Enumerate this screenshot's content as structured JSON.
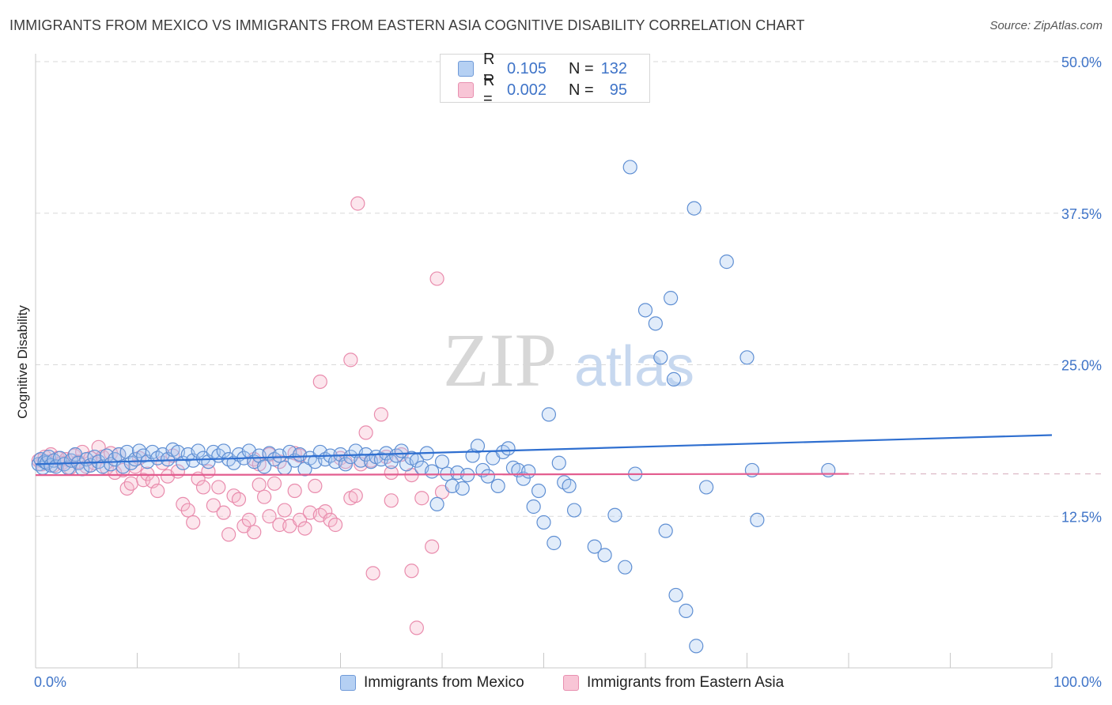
{
  "title": "IMMIGRANTS FROM MEXICO VS IMMIGRANTS FROM EASTERN ASIA COGNITIVE DISABILITY CORRELATION CHART",
  "source": "Source: ZipAtlas.com",
  "watermark": {
    "zip": "ZIP",
    "atlas": "atlas"
  },
  "colors": {
    "blue": "#3f74c8",
    "blue_fill": "#a9c8f0",
    "pink": "#e35d8f",
    "pink_fill": "#f5b8cc"
  },
  "legend": {
    "rows": [
      {
        "r_label": "R =",
        "r_value": "0.105",
        "n_label": "N =",
        "n_value": "132"
      },
      {
        "r_label": "R =",
        "r_value": "0.002",
        "n_label": "N =",
        "n_value": "95"
      }
    ]
  },
  "bottom_legend": {
    "mexico": "Immigrants from Mexico",
    "asia": "Immigrants from Eastern Asia"
  },
  "chart_data": {
    "type": "scatter",
    "title": "IMMIGRANTS FROM MEXICO VS IMMIGRANTS FROM EASTERN ASIA COGNITIVE DISABILITY CORRELATION CHART",
    "ylabel": "Cognitive Disability",
    "xlabel": "",
    "xlim": [
      0,
      100
    ],
    "ylim": [
      0,
      50
    ],
    "y_ticks": [
      "12.5%",
      "25.0%",
      "37.5%",
      "50.0%"
    ],
    "y_tick_values": [
      12.5,
      25.0,
      37.5,
      50.0
    ],
    "x_ticks": [
      "0.0%",
      "100.0%"
    ],
    "x_tick_values": [
      0,
      100
    ],
    "grid": "horizontal dashed",
    "legend_position": "top-center",
    "series": [
      {
        "name": "Immigrants from Mexico",
        "color": "#3f74c8",
        "trend": {
          "x": [
            0,
            100
          ],
          "y": [
            16.8,
            19.2
          ]
        },
        "points": [
          [
            0.3,
            16.8
          ],
          [
            0.5,
            17.2
          ],
          [
            0.7,
            16.5
          ],
          [
            0.9,
            17.0
          ],
          [
            1.1,
            16.9
          ],
          [
            1.3,
            17.4
          ],
          [
            1.5,
            16.7
          ],
          [
            1.8,
            17.1
          ],
          [
            2.0,
            16.6
          ],
          [
            2.4,
            17.3
          ],
          [
            2.8,
            16.8
          ],
          [
            3.2,
            16.5
          ],
          [
            3.5,
            17.1
          ],
          [
            3.9,
            17.6
          ],
          [
            4.2,
            16.9
          ],
          [
            4.6,
            16.4
          ],
          [
            5.0,
            17.2
          ],
          [
            5.4,
            16.7
          ],
          [
            5.8,
            17.4
          ],
          [
            6.2,
            17.0
          ],
          [
            6.6,
            16.6
          ],
          [
            7.0,
            17.5
          ],
          [
            7.4,
            16.8
          ],
          [
            7.8,
            17.2
          ],
          [
            8.2,
            17.6
          ],
          [
            8.6,
            16.6
          ],
          [
            9.0,
            17.8
          ],
          [
            9.4,
            16.9
          ],
          [
            9.8,
            17.2
          ],
          [
            10.2,
            17.9
          ],
          [
            10.6,
            17.5
          ],
          [
            11.0,
            17.0
          ],
          [
            11.5,
            17.8
          ],
          [
            12.0,
            17.3
          ],
          [
            12.5,
            17.6
          ],
          [
            13.0,
            17.2
          ],
          [
            13.5,
            18.0
          ],
          [
            14.0,
            17.8
          ],
          [
            14.5,
            16.9
          ],
          [
            15.0,
            17.6
          ],
          [
            15.5,
            17.1
          ],
          [
            16.0,
            17.9
          ],
          [
            16.5,
            17.3
          ],
          [
            17.0,
            17.0
          ],
          [
            17.5,
            17.8
          ],
          [
            18.0,
            17.5
          ],
          [
            18.5,
            17.9
          ],
          [
            19.0,
            17.2
          ],
          [
            19.5,
            16.9
          ],
          [
            20.0,
            17.6
          ],
          [
            20.5,
            17.3
          ],
          [
            21.0,
            17.9
          ],
          [
            21.5,
            17.0
          ],
          [
            22.0,
            17.5
          ],
          [
            22.5,
            16.6
          ],
          [
            23.0,
            17.7
          ],
          [
            23.5,
            17.2
          ],
          [
            24.0,
            17.5
          ],
          [
            24.5,
            16.5
          ],
          [
            25.0,
            17.8
          ],
          [
            25.5,
            17.1
          ],
          [
            26.0,
            17.6
          ],
          [
            26.5,
            16.4
          ],
          [
            27.0,
            17.3
          ],
          [
            27.5,
            17.0
          ],
          [
            28.0,
            17.8
          ],
          [
            28.5,
            17.2
          ],
          [
            29.0,
            17.5
          ],
          [
            29.5,
            17.0
          ],
          [
            30.0,
            17.6
          ],
          [
            30.5,
            16.8
          ],
          [
            31.0,
            17.4
          ],
          [
            31.5,
            17.9
          ],
          [
            32.0,
            17.1
          ],
          [
            32.5,
            17.6
          ],
          [
            33.0,
            17.0
          ],
          [
            33.5,
            17.4
          ],
          [
            34.0,
            17.2
          ],
          [
            34.5,
            17.7
          ],
          [
            35.0,
            17.0
          ],
          [
            35.5,
            17.5
          ],
          [
            36.0,
            17.9
          ],
          [
            36.5,
            16.8
          ],
          [
            37.0,
            17.3
          ],
          [
            37.5,
            17.1
          ],
          [
            38.0,
            16.5
          ],
          [
            38.5,
            17.7
          ],
          [
            39.0,
            16.2
          ],
          [
            39.5,
            13.5
          ],
          [
            40.0,
            17.0
          ],
          [
            40.5,
            16.0
          ],
          [
            41.0,
            15.0
          ],
          [
            41.5,
            16.1
          ],
          [
            42.0,
            14.8
          ],
          [
            42.5,
            15.9
          ],
          [
            43.0,
            17.5
          ],
          [
            43.5,
            18.3
          ],
          [
            44.0,
            16.3
          ],
          [
            44.5,
            15.8
          ],
          [
            45.0,
            17.3
          ],
          [
            45.5,
            15.0
          ],
          [
            46.0,
            17.8
          ],
          [
            46.5,
            18.1
          ],
          [
            47.0,
            16.5
          ],
          [
            47.5,
            16.3
          ],
          [
            48.0,
            15.6
          ],
          [
            48.5,
            16.2
          ],
          [
            49.0,
            13.3
          ],
          [
            49.5,
            14.6
          ],
          [
            50.0,
            12.0
          ],
          [
            52.0,
            15.3
          ],
          [
            53.0,
            13.0
          ],
          [
            55.0,
            10.0
          ],
          [
            56.0,
            9.3
          ],
          [
            57.0,
            12.6
          ],
          [
            58.0,
            8.3
          ],
          [
            62.0,
            11.3
          ],
          [
            63.0,
            6.0
          ],
          [
            64.0,
            4.7
          ],
          [
            65.0,
            1.8
          ],
          [
            66.0,
            14.9
          ],
          [
            51.0,
            10.3
          ],
          [
            50.5,
            20.9
          ],
          [
            51.5,
            16.9
          ],
          [
            52.5,
            15.0
          ],
          [
            59.0,
            16.0
          ],
          [
            61.0,
            28.4
          ],
          [
            62.5,
            30.5
          ],
          [
            60.0,
            29.5
          ],
          [
            58.5,
            41.3
          ],
          [
            61.5,
            25.6
          ],
          [
            62.8,
            23.8
          ],
          [
            64.8,
            37.9
          ],
          [
            68.0,
            33.5
          ],
          [
            70.0,
            25.6
          ],
          [
            70.5,
            16.3
          ],
          [
            71.0,
            12.2
          ],
          [
            78.0,
            16.3
          ]
        ]
      },
      {
        "name": "Immigrants from Eastern Asia",
        "color": "#e35d8f",
        "trend": {
          "x": [
            0,
            80
          ],
          "y": [
            15.9,
            16.0
          ]
        },
        "points": [
          [
            0.3,
            17.1
          ],
          [
            0.6,
            16.8
          ],
          [
            0.9,
            17.4
          ],
          [
            1.2,
            17.0
          ],
          [
            1.5,
            17.6
          ],
          [
            1.8,
            16.7
          ],
          [
            2.2,
            17.3
          ],
          [
            2.6,
            16.9
          ],
          [
            3.0,
            17.2
          ],
          [
            3.4,
            16.5
          ],
          [
            3.8,
            17.5
          ],
          [
            4.2,
            17.0
          ],
          [
            4.6,
            17.8
          ],
          [
            5.0,
            16.6
          ],
          [
            5.4,
            17.3
          ],
          [
            5.8,
            16.9
          ],
          [
            6.2,
            18.2
          ],
          [
            6.6,
            17.4
          ],
          [
            7.0,
            16.5
          ],
          [
            7.4,
            17.7
          ],
          [
            7.8,
            16.1
          ],
          [
            8.2,
            17.6
          ],
          [
            8.6,
            16.3
          ],
          [
            9.0,
            14.8
          ],
          [
            9.4,
            15.2
          ],
          [
            9.8,
            16.6
          ],
          [
            10.2,
            17.3
          ],
          [
            10.6,
            15.5
          ],
          [
            11.0,
            16.0
          ],
          [
            11.5,
            15.4
          ],
          [
            12.0,
            14.6
          ],
          [
            12.5,
            16.9
          ],
          [
            13.0,
            15.8
          ],
          [
            13.5,
            17.5
          ],
          [
            14.0,
            16.2
          ],
          [
            14.5,
            13.5
          ],
          [
            15.0,
            13.0
          ],
          [
            15.5,
            12.0
          ],
          [
            16.0,
            15.6
          ],
          [
            16.5,
            14.9
          ],
          [
            17.0,
            16.2
          ],
          [
            17.5,
            13.4
          ],
          [
            18.0,
            14.9
          ],
          [
            18.5,
            12.8
          ],
          [
            19.0,
            11.0
          ],
          [
            19.5,
            14.2
          ],
          [
            20.0,
            13.9
          ],
          [
            20.5,
            11.7
          ],
          [
            21.0,
            12.2
          ],
          [
            21.5,
            11.2
          ],
          [
            22.0,
            15.1
          ],
          [
            22.5,
            14.1
          ],
          [
            23.0,
            12.5
          ],
          [
            23.5,
            15.2
          ],
          [
            24.0,
            11.8
          ],
          [
            24.5,
            13.0
          ],
          [
            25.0,
            11.7
          ],
          [
            25.5,
            14.6
          ],
          [
            26.0,
            12.2
          ],
          [
            26.5,
            11.5
          ],
          [
            27.0,
            12.8
          ],
          [
            27.5,
            15.0
          ],
          [
            28.0,
            12.6
          ],
          [
            28.5,
            12.9
          ],
          [
            29.0,
            12.2
          ],
          [
            29.5,
            11.8
          ],
          [
            30.0,
            17.3
          ],
          [
            30.5,
            17.0
          ],
          [
            31.0,
            14.0
          ],
          [
            31.5,
            14.2
          ],
          [
            32.0,
            16.8
          ],
          [
            32.5,
            19.4
          ],
          [
            33.0,
            17.1
          ],
          [
            34.0,
            20.9
          ],
          [
            35.0,
            13.8
          ],
          [
            36.0,
            17.6
          ],
          [
            37.0,
            15.9
          ],
          [
            38.0,
            14.0
          ],
          [
            39.0,
            10.0
          ],
          [
            40.0,
            14.5
          ],
          [
            25.5,
            17.7
          ],
          [
            26.0,
            17.5
          ],
          [
            21.5,
            17.2
          ],
          [
            22.0,
            16.8
          ],
          [
            23.0,
            17.6
          ],
          [
            24.0,
            17.0
          ],
          [
            34.5,
            17.4
          ],
          [
            35.0,
            16.1
          ],
          [
            31.7,
            38.3
          ],
          [
            28.0,
            23.6
          ],
          [
            31.0,
            25.4
          ],
          [
            39.5,
            32.1
          ],
          [
            33.2,
            7.8
          ],
          [
            37.0,
            8.0
          ],
          [
            37.5,
            3.3
          ]
        ]
      }
    ]
  }
}
